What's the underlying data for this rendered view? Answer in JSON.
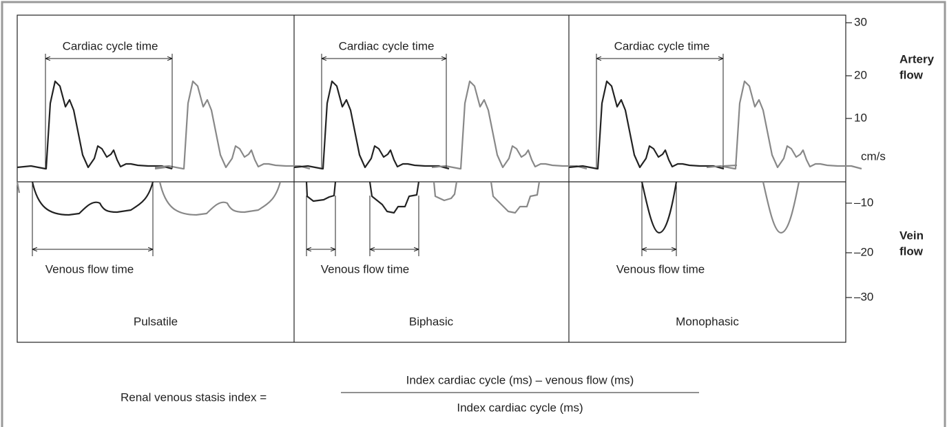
{
  "panels": [
    {
      "label": "Pulsatile",
      "cycle_label": "Cardiac cycle time",
      "venous_label": "Venous flow time"
    },
    {
      "label": "Biphasic",
      "cycle_label": "Cardiac cycle time",
      "venous_label": "Venous flow time"
    },
    {
      "label": "Monophasic",
      "cycle_label": "Cardiac cycle time",
      "venous_label": "Venous flow time"
    }
  ],
  "axis": {
    "ticks": [
      "30",
      "20",
      "10",
      "cm/s",
      "–10",
      "–20",
      "–30"
    ],
    "artery_label": [
      "Artery",
      "flow"
    ],
    "vein_label": [
      "Vein",
      "flow"
    ]
  },
  "formula": {
    "lhs": "Renal venous stasis index =",
    "numerator": "Index cardiac cycle (ms) – venous flow (ms)",
    "denominator": "Index cardiac cycle (ms)"
  }
}
